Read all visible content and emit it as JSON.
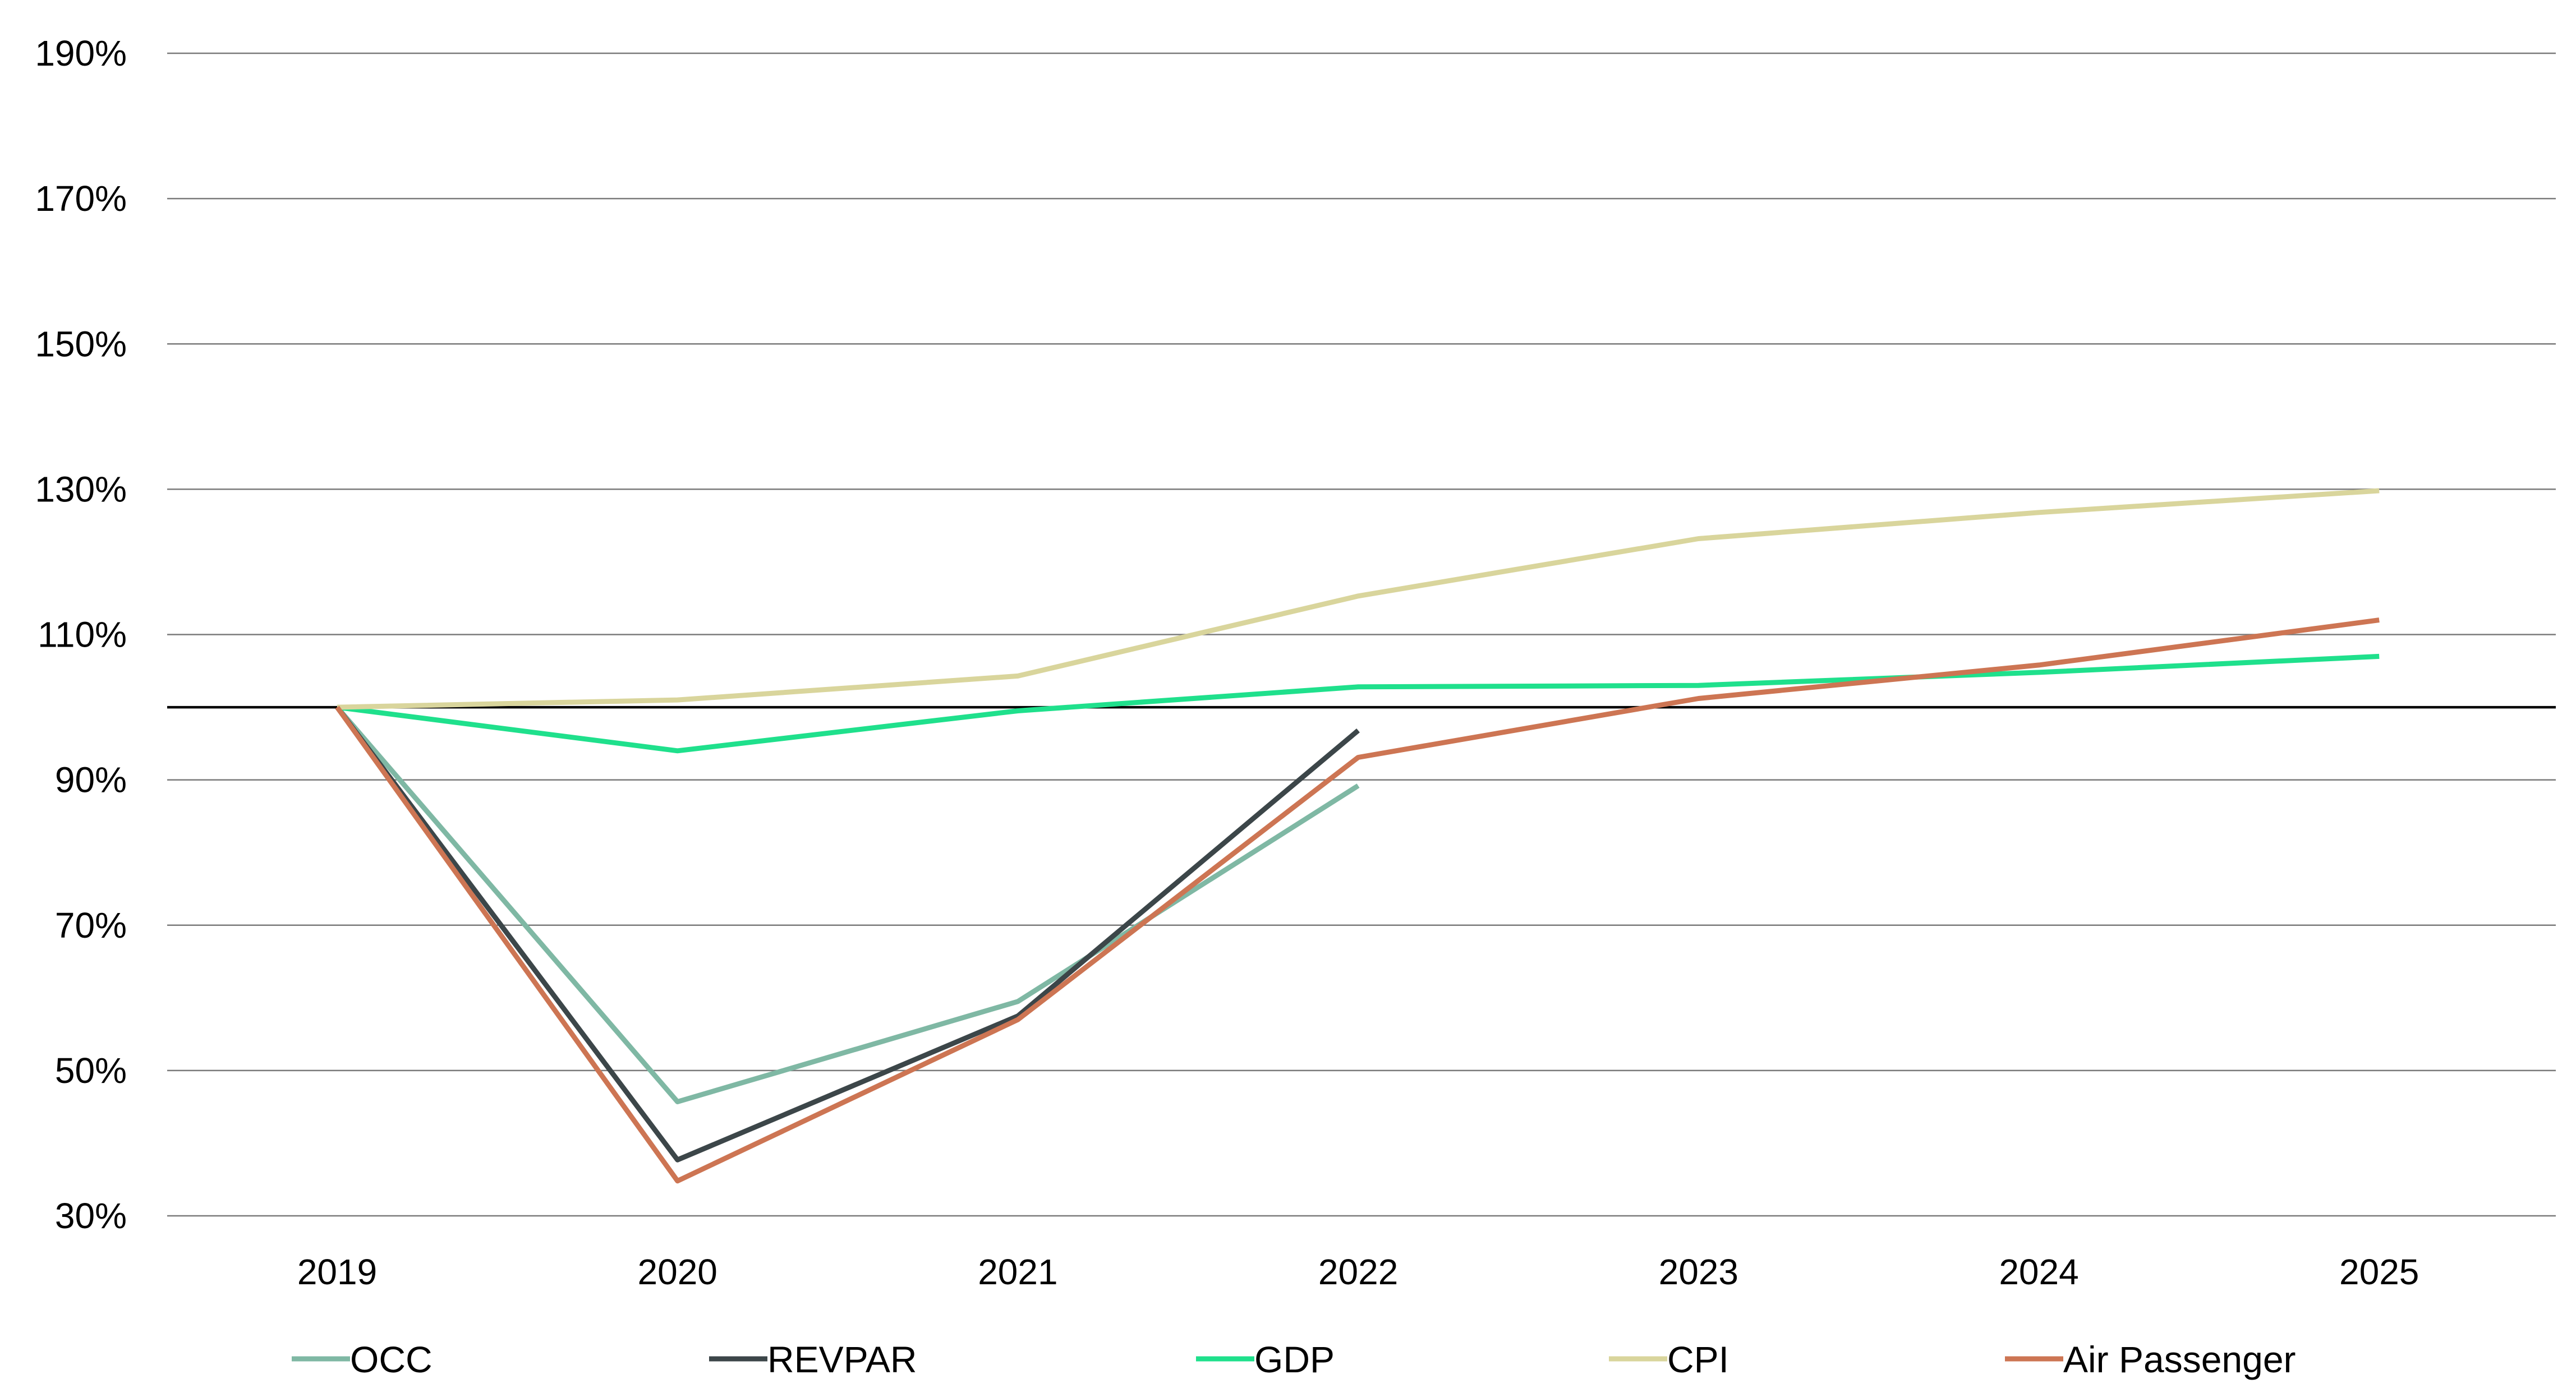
{
  "chart_data": {
    "type": "line",
    "title": "",
    "xlabel": "",
    "ylabel": "",
    "categories": [
      "2019",
      "2020",
      "2021",
      "2022",
      "2023",
      "2024",
      "2025"
    ],
    "ylim": [
      30,
      190
    ],
    "yticks": [
      30,
      50,
      70,
      90,
      110,
      130,
      150,
      170,
      190
    ],
    "ytick_labels": [
      "30%",
      "50%",
      "70%",
      "90%",
      "110%",
      "130%",
      "150%",
      "170%",
      "190%"
    ],
    "reference_line": 100,
    "grid": true,
    "legend_position": "bottom",
    "series": [
      {
        "name": "OCC",
        "color": "#7fb8a4",
        "values": [
          100,
          45.7,
          59.5,
          89.2,
          null,
          null,
          null
        ]
      },
      {
        "name": "REVPAR",
        "color": "#3c4649",
        "values": [
          100,
          37.7,
          57.5,
          96.8,
          null,
          null,
          null
        ]
      },
      {
        "name": "GDP",
        "color": "#1fe08c",
        "values": [
          100,
          94,
          99.5,
          102.8,
          103,
          104.8,
          107
        ]
      },
      {
        "name": "CPI",
        "color": "#d9d59c",
        "values": [
          100,
          101,
          104.3,
          115.3,
          123.2,
          126.8,
          129.8
        ]
      },
      {
        "name": "Air Passenger",
        "color": "#cd7553",
        "values": [
          100,
          34.8,
          57,
          93.1,
          101.2,
          105.8,
          112
        ]
      }
    ]
  }
}
